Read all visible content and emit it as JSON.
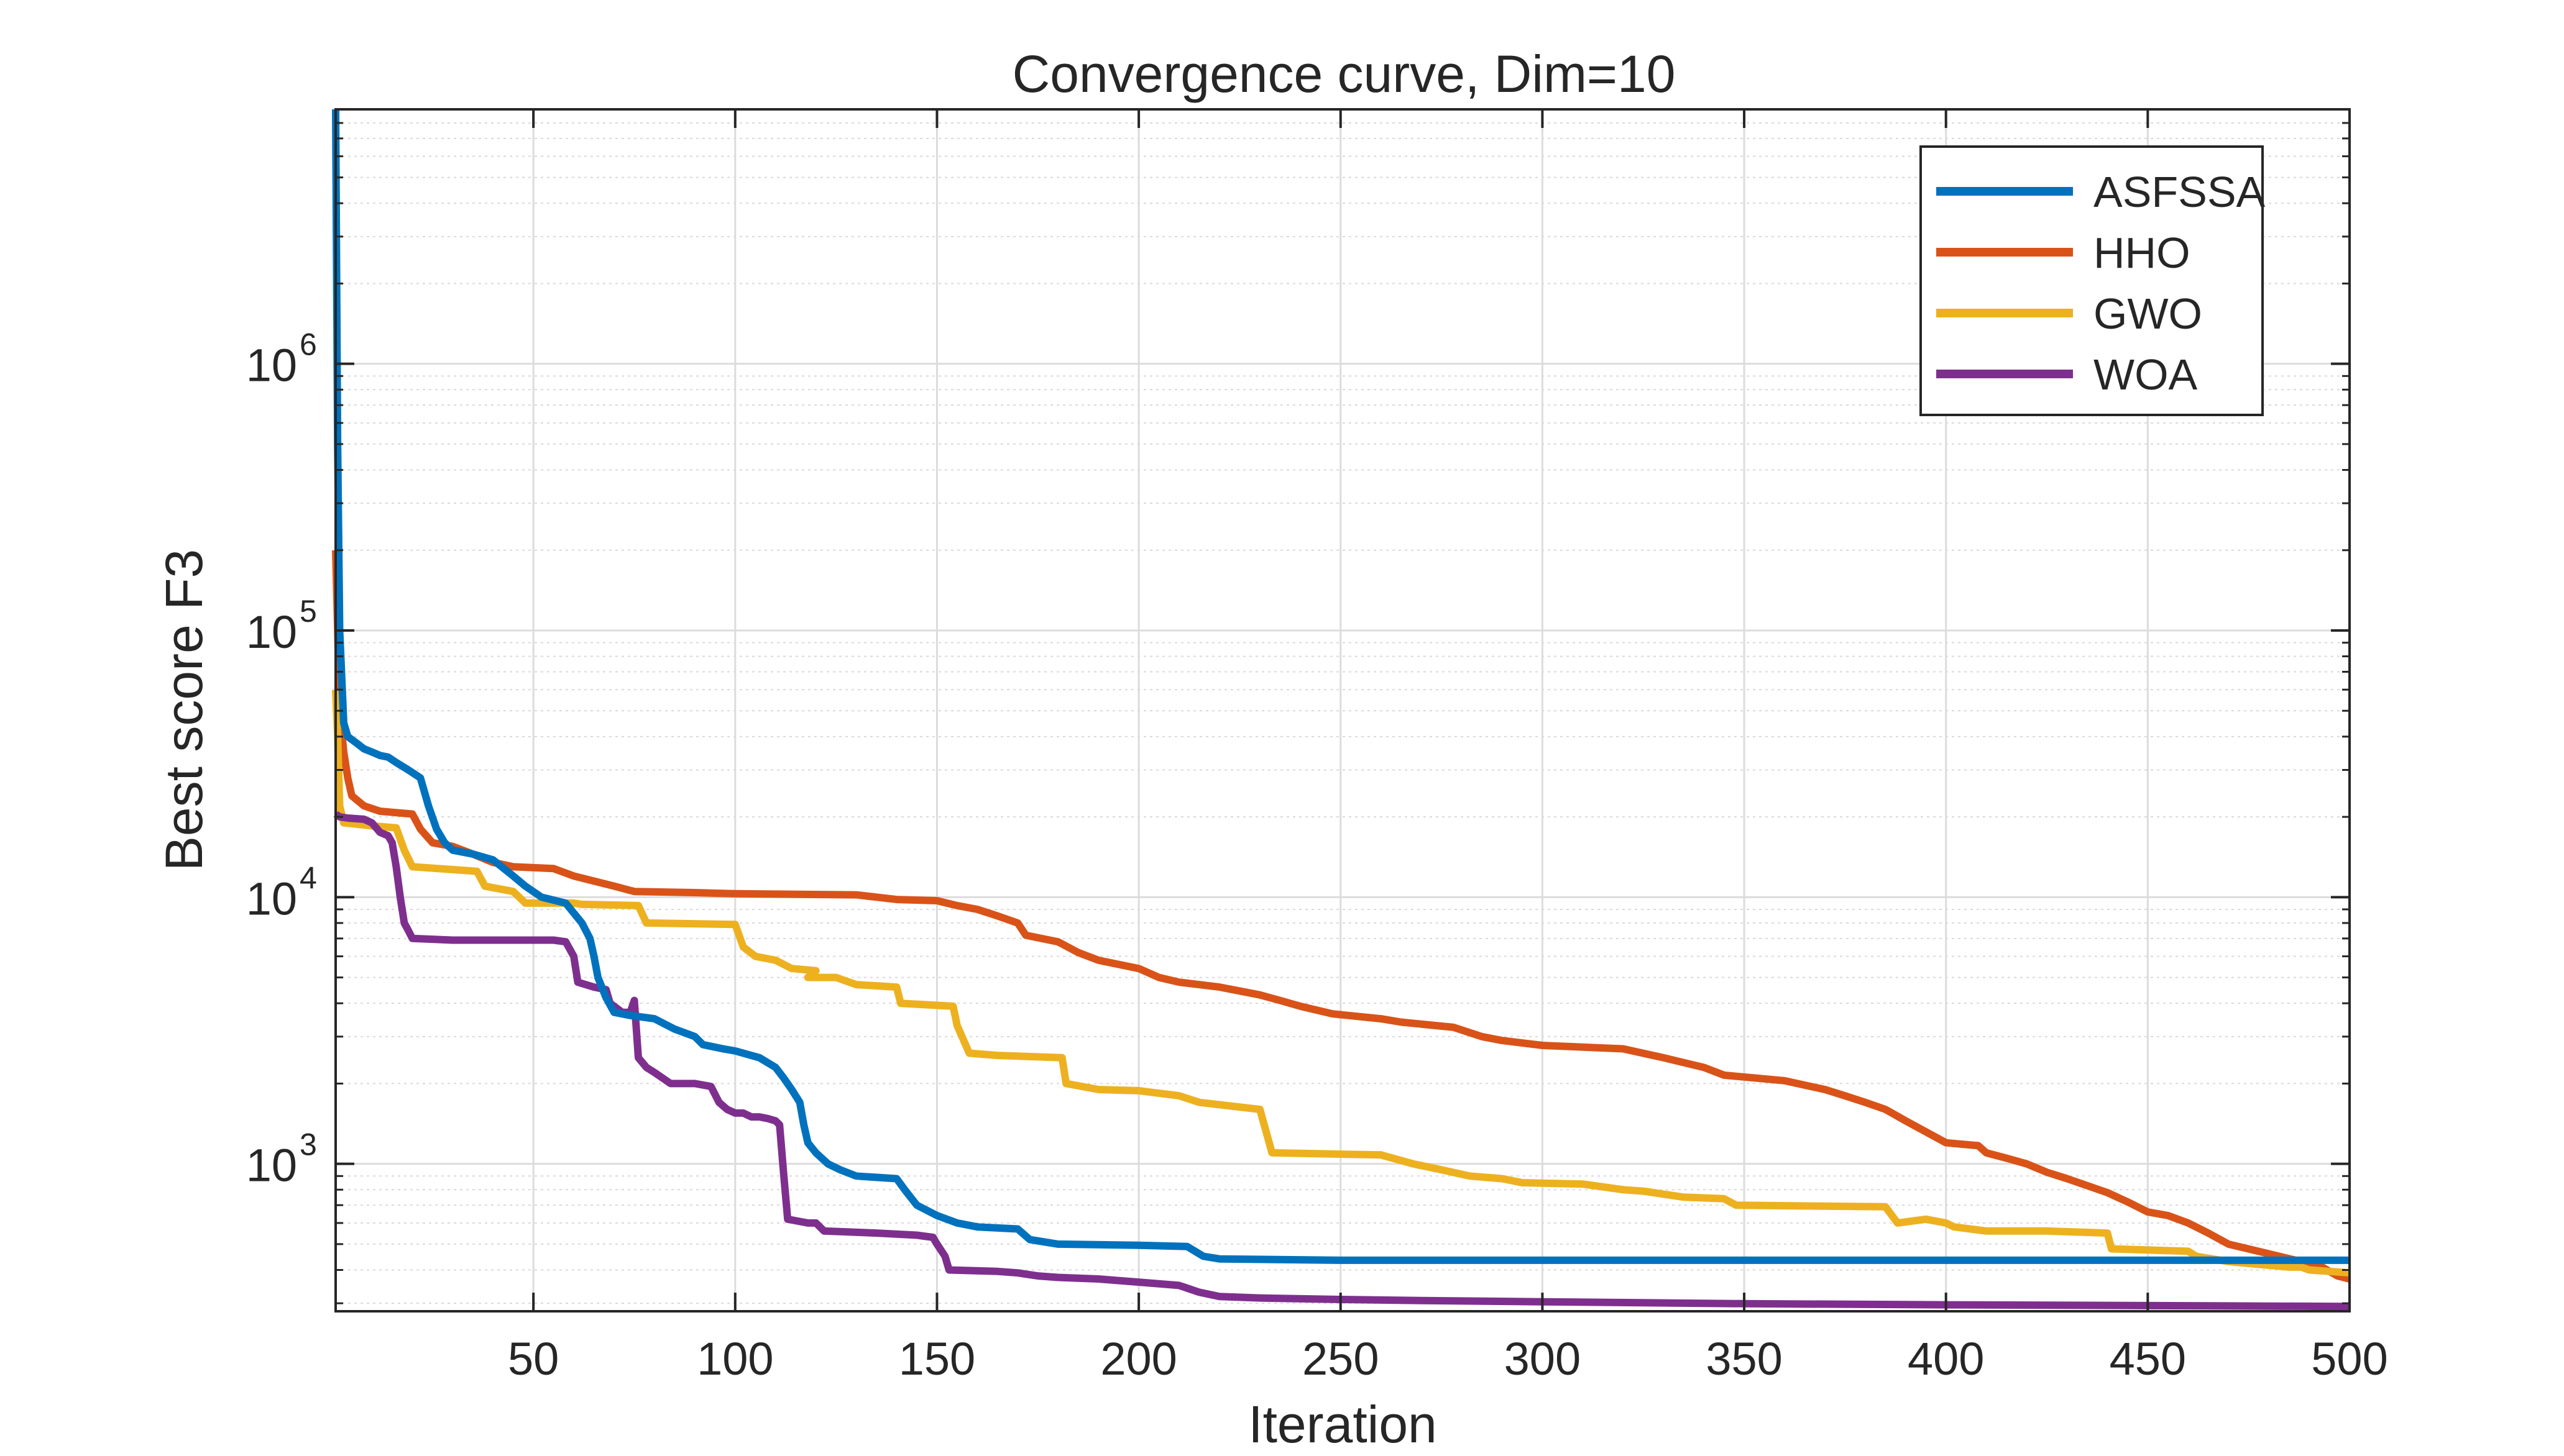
{
  "chart_data": {
    "type": "line",
    "title": "Convergence curve, Dim=10",
    "xlabel": "Iteration",
    "ylabel": "Best score F3",
    "xlim": [
      1,
      500
    ],
    "ylim": [
      280,
      9000000
    ],
    "yscale": "log",
    "grid": true,
    "legend_position": "top-right",
    "x_ticks": [
      50,
      100,
      150,
      200,
      250,
      300,
      350,
      400,
      450,
      500
    ],
    "y_ticks": [
      {
        "value": 1000,
        "base": "10",
        "exp": "3"
      },
      {
        "value": 10000,
        "base": "10",
        "exp": "4"
      },
      {
        "value": 100000,
        "base": "10",
        "exp": "5"
      },
      {
        "value": 1000000,
        "base": "10",
        "exp": "6"
      }
    ],
    "series": [
      {
        "name": "ASFSSA",
        "color": "#0072BD",
        "points": [
          [
            1,
            9000000
          ],
          [
            1.5,
            500000
          ],
          [
            2,
            100000
          ],
          [
            3,
            45000
          ],
          [
            4,
            40000
          ],
          [
            6,
            38000
          ],
          [
            8,
            36000
          ],
          [
            10,
            35000
          ],
          [
            12,
            34000
          ],
          [
            14,
            33500
          ],
          [
            16,
            32000
          ],
          [
            19,
            30000
          ],
          [
            22,
            28000
          ],
          [
            24,
            22000
          ],
          [
            26,
            18000
          ],
          [
            28,
            16000
          ],
          [
            30,
            15000
          ],
          [
            35,
            14500
          ],
          [
            40,
            13800
          ],
          [
            45,
            12000
          ],
          [
            48,
            11000
          ],
          [
            52,
            10000
          ],
          [
            58,
            9500
          ],
          [
            62,
            8000
          ],
          [
            64,
            7000
          ],
          [
            65,
            6000
          ],
          [
            66,
            5000
          ],
          [
            68,
            4200
          ],
          [
            70,
            3700
          ],
          [
            74,
            3600
          ],
          [
            80,
            3500
          ],
          [
            85,
            3200
          ],
          [
            90,
            3000
          ],
          [
            92,
            2800
          ],
          [
            97,
            2700
          ],
          [
            100,
            2650
          ],
          [
            106,
            2500
          ],
          [
            110,
            2300
          ],
          [
            112,
            2100
          ],
          [
            114,
            1900
          ],
          [
            116,
            1700
          ],
          [
            117,
            1400
          ],
          [
            118,
            1200
          ],
          [
            120,
            1100
          ],
          [
            123,
            1000
          ],
          [
            126,
            950
          ],
          [
            130,
            900
          ],
          [
            140,
            880
          ],
          [
            142,
            800
          ],
          [
            145,
            700
          ],
          [
            150,
            640
          ],
          [
            155,
            600
          ],
          [
            160,
            580
          ],
          [
            170,
            570
          ],
          [
            173,
            520
          ],
          [
            180,
            500
          ],
          [
            200,
            495
          ],
          [
            212,
            490
          ],
          [
            216,
            450
          ],
          [
            220,
            440
          ],
          [
            250,
            435
          ],
          [
            300,
            435
          ],
          [
            350,
            435
          ],
          [
            400,
            435
          ],
          [
            450,
            435
          ],
          [
            500,
            435
          ]
        ]
      },
      {
        "name": "HHO",
        "color": "#D95319",
        "points": [
          [
            1,
            200000
          ],
          [
            1.5,
            100000
          ],
          [
            2,
            50000
          ],
          [
            3,
            35000
          ],
          [
            4,
            28000
          ],
          [
            5,
            24000
          ],
          [
            8,
            22000
          ],
          [
            12,
            21000
          ],
          [
            20,
            20500
          ],
          [
            22,
            18000
          ],
          [
            25,
            16000
          ],
          [
            30,
            15500
          ],
          [
            35,
            14500
          ],
          [
            40,
            13500
          ],
          [
            45,
            13000
          ],
          [
            55,
            12800
          ],
          [
            60,
            12000
          ],
          [
            70,
            11000
          ],
          [
            75,
            10500
          ],
          [
            90,
            10400
          ],
          [
            100,
            10300
          ],
          [
            130,
            10200
          ],
          [
            135,
            10000
          ],
          [
            140,
            9800
          ],
          [
            150,
            9700
          ],
          [
            155,
            9300
          ],
          [
            160,
            9000
          ],
          [
            165,
            8500
          ],
          [
            170,
            8000
          ],
          [
            172,
            7200
          ],
          [
            180,
            6800
          ],
          [
            185,
            6200
          ],
          [
            190,
            5800
          ],
          [
            200,
            5400
          ],
          [
            205,
            5000
          ],
          [
            210,
            4800
          ],
          [
            220,
            4600
          ],
          [
            230,
            4300
          ],
          [
            235,
            4100
          ],
          [
            240,
            3900
          ],
          [
            248,
            3650
          ],
          [
            260,
            3500
          ],
          [
            265,
            3400
          ],
          [
            278,
            3250
          ],
          [
            285,
            3000
          ],
          [
            290,
            2900
          ],
          [
            300,
            2780
          ],
          [
            320,
            2700
          ],
          [
            330,
            2500
          ],
          [
            340,
            2300
          ],
          [
            345,
            2150
          ],
          [
            360,
            2050
          ],
          [
            370,
            1900
          ],
          [
            375,
            1800
          ],
          [
            380,
            1700
          ],
          [
            385,
            1600
          ],
          [
            390,
            1450
          ],
          [
            400,
            1200
          ],
          [
            408,
            1170
          ],
          [
            410,
            1100
          ],
          [
            415,
            1050
          ],
          [
            420,
            1000
          ],
          [
            425,
            930
          ],
          [
            430,
            880
          ],
          [
            440,
            780
          ],
          [
            445,
            720
          ],
          [
            450,
            660
          ],
          [
            455,
            640
          ],
          [
            460,
            600
          ],
          [
            465,
            550
          ],
          [
            470,
            500
          ],
          [
            480,
            460
          ],
          [
            488,
            430
          ],
          [
            492,
            420
          ],
          [
            497,
            380
          ],
          [
            500,
            370
          ]
        ]
      },
      {
        "name": "GWO",
        "color": "#EDB120",
        "points": [
          [
            1,
            60000
          ],
          [
            1.5,
            40000
          ],
          [
            2,
            22000
          ],
          [
            3,
            19000
          ],
          [
            6,
            18800
          ],
          [
            10,
            18500
          ],
          [
            16,
            18200
          ],
          [
            18,
            15000
          ],
          [
            20,
            13000
          ],
          [
            36,
            12500
          ],
          [
            38,
            11000
          ],
          [
            45,
            10500
          ],
          [
            48,
            9500
          ],
          [
            60,
            9500
          ],
          [
            62,
            9400
          ],
          [
            76,
            9300
          ],
          [
            78,
            8000
          ],
          [
            100,
            7900
          ],
          [
            102,
            6500
          ],
          [
            105,
            6000
          ],
          [
            110,
            5800
          ],
          [
            114,
            5400
          ],
          [
            120,
            5300
          ],
          [
            118,
            5000
          ],
          [
            125,
            5000
          ],
          [
            130,
            4700
          ],
          [
            140,
            4600
          ],
          [
            141,
            4000
          ],
          [
            154,
            3900
          ],
          [
            155,
            3300
          ],
          [
            158,
            2600
          ],
          [
            165,
            2550
          ],
          [
            181,
            2500
          ],
          [
            182,
            2000
          ],
          [
            190,
            1900
          ],
          [
            200,
            1880
          ],
          [
            210,
            1800
          ],
          [
            215,
            1700
          ],
          [
            230,
            1600
          ],
          [
            233,
            1100
          ],
          [
            260,
            1080
          ],
          [
            268,
            1000
          ],
          [
            275,
            950
          ],
          [
            282,
            900
          ],
          [
            290,
            880
          ],
          [
            295,
            850
          ],
          [
            310,
            840
          ],
          [
            320,
            800
          ],
          [
            325,
            790
          ],
          [
            335,
            750
          ],
          [
            345,
            740
          ],
          [
            348,
            700
          ],
          [
            385,
            690
          ],
          [
            388,
            600
          ],
          [
            395,
            620
          ],
          [
            400,
            600
          ],
          [
            402,
            580
          ],
          [
            410,
            560
          ],
          [
            425,
            560
          ],
          [
            440,
            550
          ],
          [
            441,
            480
          ],
          [
            460,
            470
          ],
          [
            462,
            450
          ],
          [
            470,
            430
          ],
          [
            485,
            410
          ],
          [
            488,
            410
          ],
          [
            490,
            400
          ],
          [
            495,
            395
          ],
          [
            500,
            390
          ]
        ]
      },
      {
        "name": "WOA",
        "color": "#7E2F8E",
        "points": [
          [
            1,
            20500
          ],
          [
            2,
            20000
          ],
          [
            4,
            19800
          ],
          [
            8,
            19600
          ],
          [
            10,
            19000
          ],
          [
            12,
            17500
          ],
          [
            14,
            17000
          ],
          [
            15,
            16000
          ],
          [
            16,
            13000
          ],
          [
            17,
            10000
          ],
          [
            18,
            8000
          ],
          [
            19,
            7500
          ],
          [
            20,
            7000
          ],
          [
            30,
            6900
          ],
          [
            45,
            6900
          ],
          [
            55,
            6900
          ],
          [
            58,
            6800
          ],
          [
            60,
            6000
          ],
          [
            61,
            4800
          ],
          [
            65,
            4600
          ],
          [
            68,
            4500
          ],
          [
            69,
            4000
          ],
          [
            72,
            3700
          ],
          [
            74,
            3700
          ],
          [
            75,
            4100
          ],
          [
            76,
            2500
          ],
          [
            78,
            2300
          ],
          [
            80,
            2200
          ],
          [
            84,
            2000
          ],
          [
            90,
            2000
          ],
          [
            94,
            1950
          ],
          [
            96,
            1700
          ],
          [
            98,
            1600
          ],
          [
            100,
            1550
          ],
          [
            102,
            1550
          ],
          [
            104,
            1500
          ],
          [
            106,
            1500
          ],
          [
            108,
            1480
          ],
          [
            110,
            1450
          ],
          [
            111,
            1400
          ],
          [
            112,
            920
          ],
          [
            113,
            620
          ],
          [
            118,
            600
          ],
          [
            120,
            600
          ],
          [
            122,
            560
          ],
          [
            135,
            550
          ],
          [
            145,
            540
          ],
          [
            149,
            530
          ],
          [
            150,
            500
          ],
          [
            152,
            450
          ],
          [
            153,
            400
          ],
          [
            165,
            395
          ],
          [
            170,
            390
          ],
          [
            175,
            380
          ],
          [
            180,
            375
          ],
          [
            190,
            370
          ],
          [
            200,
            360
          ],
          [
            210,
            350
          ],
          [
            215,
            330
          ],
          [
            220,
            318
          ],
          [
            230,
            314
          ],
          [
            250,
            310
          ],
          [
            270,
            307
          ],
          [
            300,
            304
          ],
          [
            350,
            299
          ],
          [
            400,
            296
          ],
          [
            450,
            294
          ],
          [
            500,
            292
          ]
        ]
      }
    ]
  }
}
